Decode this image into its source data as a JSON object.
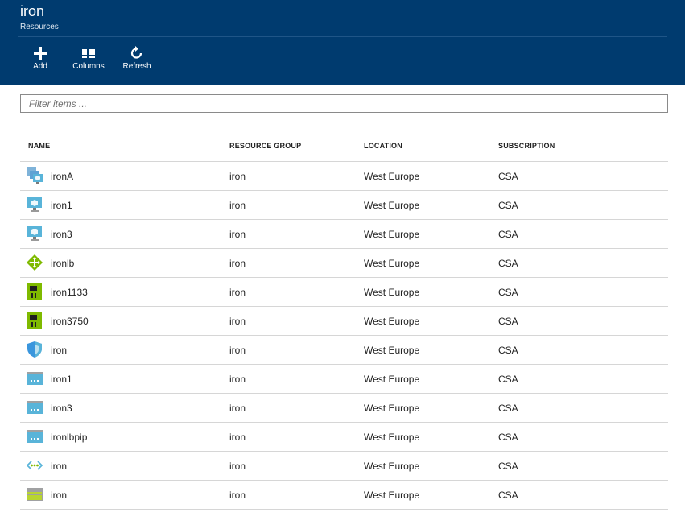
{
  "blade": {
    "title": "iron",
    "subtitle": "Resources"
  },
  "commands": [
    {
      "label": "Add",
      "icon": "plus-icon"
    },
    {
      "label": "Columns",
      "icon": "columns-icon"
    },
    {
      "label": "Refresh",
      "icon": "refresh-icon"
    }
  ],
  "filter": {
    "placeholder": "Filter items ...",
    "value": ""
  },
  "table": {
    "columns": [
      "NAME",
      "RESOURCE GROUP",
      "LOCATION",
      "SUBSCRIPTION"
    ],
    "rows": [
      {
        "icon": "availability-set-icon",
        "name": "ironA",
        "group": "iron",
        "location": "West Europe",
        "subscription": "CSA"
      },
      {
        "icon": "virtual-machine-icon",
        "name": "iron1",
        "group": "iron",
        "location": "West Europe",
        "subscription": "CSA"
      },
      {
        "icon": "virtual-machine-icon",
        "name": "iron3",
        "group": "iron",
        "location": "West Europe",
        "subscription": "CSA"
      },
      {
        "icon": "load-balancer-icon",
        "name": "ironlb",
        "group": "iron",
        "location": "West Europe",
        "subscription": "CSA"
      },
      {
        "icon": "network-interface-icon",
        "name": "iron1133",
        "group": "iron",
        "location": "West Europe",
        "subscription": "CSA"
      },
      {
        "icon": "network-interface-icon",
        "name": "iron3750",
        "group": "iron",
        "location": "West Europe",
        "subscription": "CSA"
      },
      {
        "icon": "network-security-group-icon",
        "name": "iron",
        "group": "iron",
        "location": "West Europe",
        "subscription": "CSA"
      },
      {
        "icon": "public-ip-icon",
        "name": "iron1",
        "group": "iron",
        "location": "West Europe",
        "subscription": "CSA"
      },
      {
        "icon": "public-ip-icon",
        "name": "iron3",
        "group": "iron",
        "location": "West Europe",
        "subscription": "CSA"
      },
      {
        "icon": "public-ip-icon",
        "name": "ironlbpip",
        "group": "iron",
        "location": "West Europe",
        "subscription": "CSA"
      },
      {
        "icon": "virtual-network-icon",
        "name": "iron",
        "group": "iron",
        "location": "West Europe",
        "subscription": "CSA"
      },
      {
        "icon": "storage-account-icon",
        "name": "iron",
        "group": "iron",
        "location": "West Europe",
        "subscription": "CSA"
      }
    ]
  }
}
